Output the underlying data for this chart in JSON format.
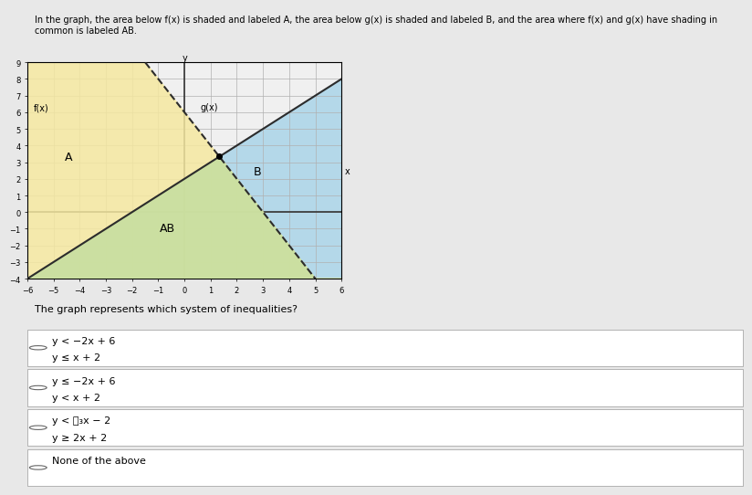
{
  "title_text": "In the graph, the area below f(x) is shaded and labeled A, the area below g(x) is shaded and labeled B, and the area where f(x) and g(x) have shading in common is labeled AB.",
  "xlim": [
    -6,
    6
  ],
  "ylim": [
    -4,
    9
  ],
  "xticks": [
    -6,
    -5,
    -4,
    -3,
    -2,
    -1,
    0,
    1,
    2,
    3,
    4,
    5,
    6
  ],
  "yticks": [
    -4,
    -3,
    -2,
    -1,
    0,
    1,
    2,
    3,
    4,
    5,
    6,
    7,
    8,
    9
  ],
  "fx_slope": 1,
  "fx_intercept": 2,
  "gx_slope": -2,
  "gx_intercept": 6,
  "color_A": "#aad4e8",
  "color_B": "#f5e8a0",
  "color_AB": "#c8dfa0",
  "line_color_f": "#2c2c2c",
  "line_color_g": "#2c2c2c",
  "label_A": "A",
  "label_B": "B",
  "label_AB": "AB",
  "label_fx": "f(x)",
  "label_gx": "g(x)",
  "grid_color": "#b0b0b0",
  "axis_color": "#333333",
  "bg_color": "#ffffff",
  "plot_bg": "#f0f0f0",
  "question_text": "The graph represents which system of inequalities?",
  "options": [
    "y < −2x + 6\ny ≤ x + 2",
    "y ≤ −2x + 6\ny < x + 2",
    "y < ⁲₃x − 2\ny ≥ 2x + 2",
    "None of the above"
  ],
  "option_prefixes": [
    "O",
    "O",
    "O",
    "O"
  ],
  "option_3_line1": "y < ⁲x − 2",
  "option_3_line2": "y ≥ 2x + 2",
  "fig_width": 8.0,
  "fig_height": 5.22
}
